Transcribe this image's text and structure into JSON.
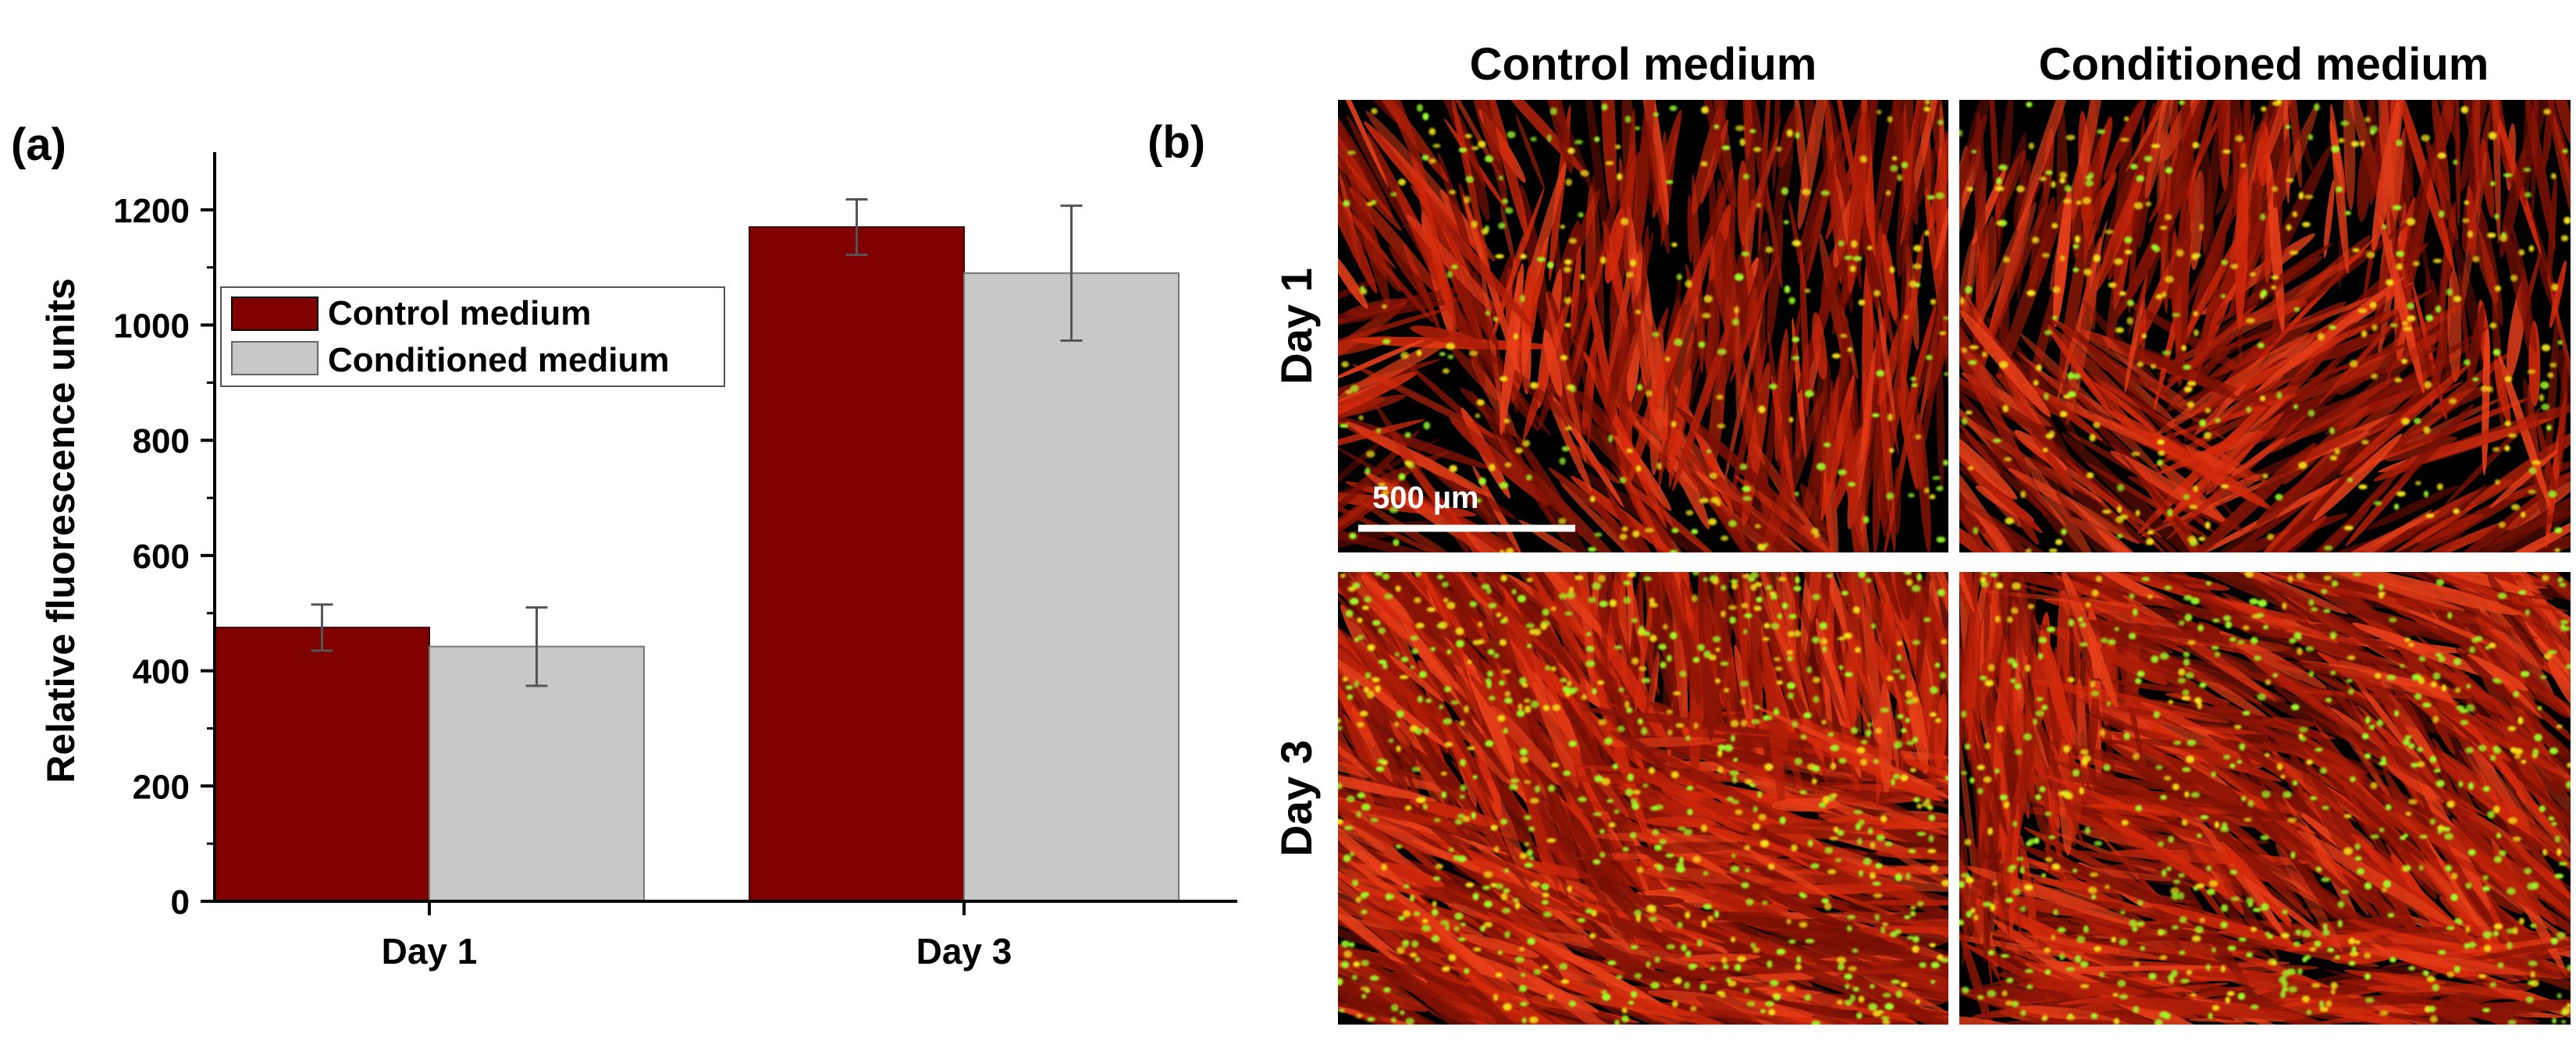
{
  "panel_a_label": "(a)",
  "panel_b_label": "(b)",
  "colors": {
    "control": "#800000",
    "conditioned": "#c8c8c8",
    "micrograph_background": "#000000",
    "cytoskeleton_stain": "#d42a0c",
    "nuclear_stain": "#9cff2a",
    "scale_bar": "#ffffff"
  },
  "chart_data": {
    "type": "bar",
    "categories": [
      "Day 1",
      "Day 3"
    ],
    "series": [
      {
        "name": "Control medium",
        "values": [
          475,
          1170
        ],
        "errors": [
          40,
          48
        ]
      },
      {
        "name": "Conditioned medium",
        "values": [
          442,
          1090
        ],
        "errors": [
          68,
          117
        ]
      }
    ],
    "ylabel": "Relative fluorescence units",
    "xlabel": "",
    "ylim": [
      0,
      1300
    ],
    "yticks": [
      0,
      200,
      400,
      600,
      800,
      1000,
      1200
    ],
    "grid": false,
    "legend_placement": "upper-left"
  },
  "micrographs": {
    "column_titles": [
      "Control medium",
      "Conditioned medium"
    ],
    "row_labels": [
      "Day 1",
      "Day 3"
    ],
    "scale_bar_label": "500 µm",
    "panels": [
      {
        "row": "Day 1",
        "column": "Control medium"
      },
      {
        "row": "Day 1",
        "column": "Conditioned medium"
      },
      {
        "row": "Day 3",
        "column": "Control medium"
      },
      {
        "row": "Day 3",
        "column": "Conditioned medium"
      }
    ]
  }
}
